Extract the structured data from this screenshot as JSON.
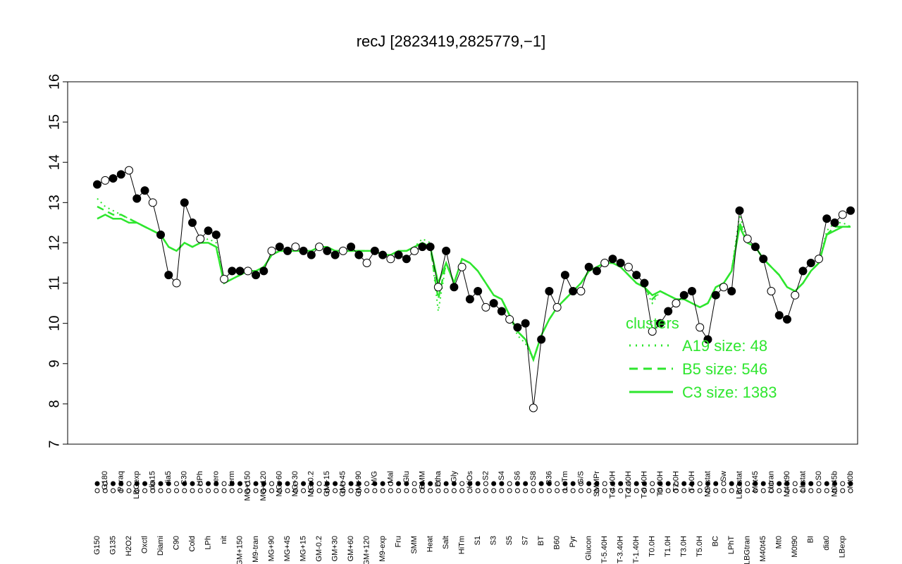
{
  "colors": {
    "points_filled": "#000000",
    "points_open": "#ffffff",
    "cluster_line": "#2ee62e",
    "frame": "#000000"
  },
  "chart_data": {
    "type": "line",
    "title": "recJ [2823419,2825779,−1]",
    "xlabel": "",
    "ylabel": "",
    "ylim": [
      7,
      16
    ],
    "yticks": [
      "7",
      "8",
      "9",
      "10",
      "11",
      "12",
      "13",
      "14",
      "15",
      "16"
    ],
    "grid": false,
    "legend": {
      "title": "clusters",
      "placement": "right",
      "entries": [
        {
          "label": "A19 size: 48",
          "style": "dotted"
        },
        {
          "label": "B5 size: 546",
          "style": "dashed"
        },
        {
          "label": "C3 size: 1383",
          "style": "solid"
        }
      ]
    },
    "x_labels": [
      "G150",
      "G180",
      "G135",
      "Paraq",
      "H2O2",
      "LBGexp",
      "Oxctl",
      "dia15",
      "Diami",
      "dia5",
      "C90",
      "C30",
      "Cold",
      "HPh",
      "LPh",
      "aero",
      "nit",
      "ferm",
      "GM+150",
      "MG+150",
      "M9-tran",
      "MG+120",
      "MG+90",
      "MG+60",
      "MG+45",
      "MG+30",
      "MG+15",
      "MG-0.2",
      "GM-0.2",
      "GM+15",
      "GM+30",
      "GM+45",
      "GM+60",
      "GM+90",
      "GM+120",
      "M/G",
      "M9-exp",
      "Mal",
      "Fru",
      "Glu",
      "SMM",
      "BMM",
      "Heat",
      "Etha",
      "Salt",
      "Gly",
      "HiTm",
      "HiOs",
      "S1",
      "S2",
      "S3",
      "S4",
      "S5",
      "S6",
      "S7",
      "S8",
      "BT",
      "B36",
      "B60",
      "LoTm",
      "Pyr",
      "G/S",
      "Glucon",
      "SMMPr",
      "T-5.40H",
      "T-4.40H",
      "T-3.40H",
      "T-2.40H",
      "T-1.40H",
      "T-0.40H",
      "T0.0H",
      "T0.30H",
      "T1.0H",
      "T2.0H",
      "T3.0H",
      "T4.0H",
      "T5.0H",
      "M9-stat",
      "BC",
      "Sw",
      "LPhT",
      "LBGstat",
      "LBGtran",
      "M0t45",
      "M40t45",
      "Lbtran",
      "Mt0",
      "M40t90",
      "M0t90",
      "Lbstat",
      "BI",
      "S0",
      "dia0",
      "M0t45b",
      "LBexp",
      "Mt0b"
    ],
    "series": [
      {
        "role": "expression_points",
        "values": [
          13.45,
          13.55,
          13.6,
          13.7,
          13.8,
          13.1,
          13.3,
          13.0,
          12.2,
          11.2,
          11.0,
          13.0,
          12.5,
          12.1,
          12.3,
          12.2,
          11.1,
          11.3,
          11.3,
          11.3,
          11.2,
          11.3,
          11.8,
          11.9,
          11.8,
          11.9,
          11.8,
          11.7,
          11.9,
          11.8,
          11.7,
          11.8,
          11.9,
          11.7,
          11.5,
          11.8,
          11.7,
          11.6,
          11.7,
          11.6,
          11.8,
          11.9,
          11.9,
          10.9,
          11.8,
          10.9,
          11.4,
          10.6,
          10.8,
          10.4,
          10.5,
          10.3,
          10.1,
          9.9,
          10.0,
          7.9,
          9.6,
          10.8,
          10.4,
          11.2,
          10.8,
          10.8,
          11.4,
          11.3,
          11.5,
          11.6,
          11.5,
          11.4,
          11.2,
          11.0,
          9.8,
          10.0,
          10.3,
          10.5,
          10.7,
          10.8,
          9.9,
          9.6,
          10.7,
          10.9,
          10.8,
          12.8,
          12.1,
          11.9,
          11.6,
          10.8,
          10.2,
          10.1,
          10.7,
          11.3,
          11.5,
          11.6,
          12.6,
          12.5,
          12.7,
          12.8
        ]
      },
      {
        "name": "A19",
        "values": [
          13.1,
          12.9,
          12.8,
          12.7,
          12.6,
          12.5,
          12.4,
          12.3,
          12.2,
          11.9,
          11.8,
          12.0,
          11.9,
          12.0,
          12.1,
          12.0,
          11.0,
          11.1,
          11.2,
          11.3,
          11.3,
          11.4,
          11.7,
          11.8,
          11.8,
          11.8,
          11.8,
          11.8,
          11.9,
          11.9,
          11.8,
          11.8,
          11.8,
          11.8,
          11.8,
          11.8,
          11.7,
          11.7,
          11.8,
          11.8,
          11.9,
          12.1,
          12.0,
          10.3,
          11.5,
          11.0,
          11.6,
          11.5,
          11.3,
          11.0,
          10.7,
          10.6,
          10.2,
          9.7,
          9.5,
          9.1,
          9.7,
          10.1,
          10.4,
          10.6,
          10.8,
          11.0,
          11.3,
          11.4,
          11.5,
          11.5,
          11.4,
          11.2,
          11.0,
          10.9,
          10.5,
          10.8,
          10.7,
          10.6,
          10.6,
          10.5,
          10.4,
          10.5,
          10.9,
          11.0,
          11.3,
          12.7,
          12.0,
          11.9,
          11.6,
          11.4,
          11.2,
          10.9,
          10.8,
          11.0,
          11.3,
          11.5,
          12.3,
          12.5,
          12.5,
          12.4
        ]
      },
      {
        "name": "B5",
        "values": [
          12.9,
          12.8,
          12.7,
          12.7,
          12.6,
          12.5,
          12.4,
          12.3,
          12.2,
          11.9,
          11.8,
          12.0,
          11.9,
          12.0,
          12.0,
          11.9,
          11.0,
          11.1,
          11.2,
          11.3,
          11.3,
          11.4,
          11.7,
          11.8,
          11.8,
          11.8,
          11.8,
          11.8,
          11.9,
          11.9,
          11.8,
          11.8,
          11.8,
          11.8,
          11.8,
          11.8,
          11.7,
          11.7,
          11.8,
          11.8,
          11.9,
          12.0,
          11.9,
          10.6,
          11.5,
          11.0,
          11.6,
          11.5,
          11.3,
          11.0,
          10.7,
          10.6,
          10.2,
          9.8,
          9.6,
          9.1,
          9.7,
          10.1,
          10.4,
          10.6,
          10.8,
          11.0,
          11.3,
          11.4,
          11.5,
          11.5,
          11.4,
          11.2,
          11.0,
          10.9,
          10.6,
          10.8,
          10.7,
          10.6,
          10.6,
          10.5,
          10.4,
          10.5,
          10.9,
          11.0,
          11.3,
          12.5,
          12.0,
          11.9,
          11.6,
          11.4,
          11.2,
          10.9,
          10.8,
          11.0,
          11.3,
          11.5,
          12.2,
          12.4,
          12.4,
          12.4
        ]
      },
      {
        "name": "C3",
        "values": [
          12.6,
          12.7,
          12.6,
          12.6,
          12.5,
          12.5,
          12.4,
          12.3,
          12.2,
          11.9,
          11.8,
          12.0,
          11.9,
          12.0,
          12.0,
          11.9,
          11.0,
          11.1,
          11.2,
          11.3,
          11.3,
          11.4,
          11.7,
          11.8,
          11.8,
          11.8,
          11.8,
          11.8,
          11.9,
          11.9,
          11.8,
          11.8,
          11.8,
          11.8,
          11.8,
          11.8,
          11.7,
          11.7,
          11.8,
          11.8,
          11.9,
          12.0,
          11.9,
          11.0,
          11.5,
          11.0,
          11.6,
          11.5,
          11.3,
          11.0,
          10.7,
          10.6,
          10.2,
          9.8,
          9.6,
          9.1,
          9.7,
          10.1,
          10.4,
          10.6,
          10.8,
          11.0,
          11.3,
          11.4,
          11.5,
          11.5,
          11.4,
          11.2,
          11.0,
          10.9,
          10.7,
          10.8,
          10.7,
          10.6,
          10.6,
          10.5,
          10.4,
          10.5,
          10.9,
          11.0,
          11.3,
          12.4,
          12.0,
          11.9,
          11.6,
          11.4,
          11.2,
          10.9,
          10.8,
          11.0,
          11.3,
          11.5,
          12.2,
          12.3,
          12.4,
          12.4
        ]
      }
    ]
  }
}
